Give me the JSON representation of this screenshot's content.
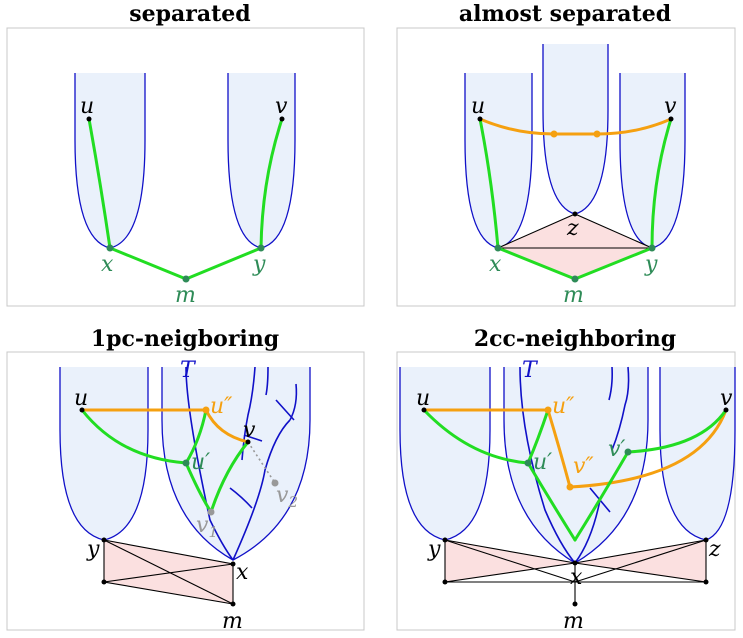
{
  "panels": [
    {
      "title": "separated",
      "labels": {
        "u": "u",
        "v": "v",
        "x": "x",
        "y": "y",
        "m": "m"
      }
    },
    {
      "title": "almost separated",
      "labels": {
        "u": "u",
        "v": "v",
        "x": "x",
        "y": "y",
        "m": "m",
        "z": "z"
      }
    },
    {
      "title": "1pc-neigboring",
      "labels": {
        "T": "T",
        "u": "u",
        "u2": "u″",
        "v": "v",
        "u1": "u′",
        "v2": "v",
        "v2_sub": "2",
        "v1": "v",
        "v1_sub": "1",
        "y": "y",
        "x": "x",
        "m": "m"
      }
    },
    {
      "title": "2cc-neighboring",
      "labels": {
        "T": "T",
        "u": "u",
        "u2": "u″",
        "v": "v",
        "u1": "u′",
        "v1p": "v′",
        "v2p": "v″",
        "y": "y",
        "x": "x",
        "z": "z",
        "m": "m"
      }
    }
  ],
  "colors": {
    "cone_fill": "#eaf1fb",
    "cone_stroke": "#1010c8",
    "green_path": "#22dd22",
    "orange_path": "#f5a010",
    "teal_label": "#2e8b57",
    "orange_label": "#f5a010",
    "grey_label": "#999999",
    "pink_fill": "#fbe0e0"
  }
}
